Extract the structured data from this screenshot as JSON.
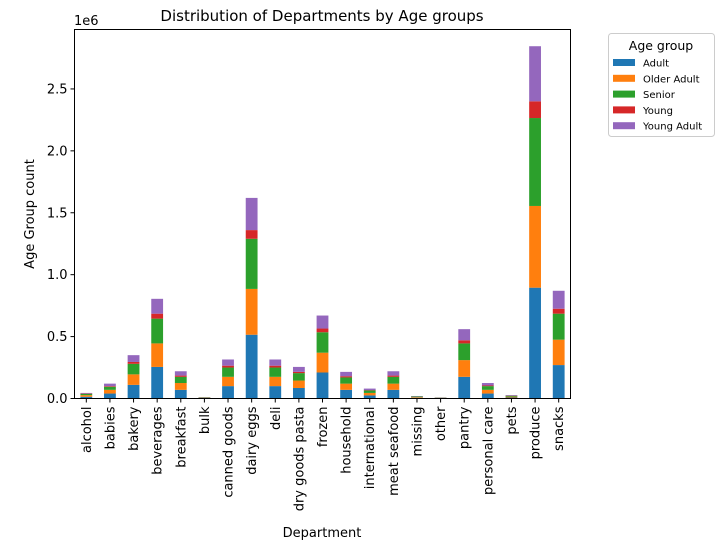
{
  "chart_data": {
    "type": "bar",
    "stacked": true,
    "title": "Distribution of Departments by Age groups",
    "xlabel": "Department",
    "ylabel": "Age Group count",
    "y_offset_label": "1e6",
    "ylim": [
      0,
      2.98
    ],
    "yticks": [
      "0.0",
      "0.5",
      "1.0",
      "1.5",
      "2.0",
      "2.5"
    ],
    "grid": false,
    "legend_title": "Age group",
    "legend_placement": "outside-top-right",
    "categories": [
      "alcohol",
      "babies",
      "bakery",
      "beverages",
      "breakfast",
      "bulk",
      "canned goods",
      "dairy eggs",
      "deli",
      "dry goods pasta",
      "frozen",
      "household",
      "international",
      "meat seafood",
      "missing",
      "other",
      "pantry",
      "personal care",
      "pets",
      "produce",
      "snacks"
    ],
    "series": [
      {
        "name": "Adult",
        "color": "#1f77b4",
        "values": [
          0.014,
          0.04,
          0.11,
          0.255,
          0.07,
          0.003,
          0.1,
          0.515,
          0.1,
          0.085,
          0.21,
          0.07,
          0.025,
          0.07,
          0.006,
          0.003,
          0.175,
          0.04,
          0.008,
          0.895,
          0.27
        ]
      },
      {
        "name": "Older Adult",
        "color": "#ff7f0e",
        "values": [
          0.013,
          0.03,
          0.085,
          0.19,
          0.055,
          0.003,
          0.075,
          0.37,
          0.075,
          0.06,
          0.16,
          0.05,
          0.02,
          0.05,
          0.005,
          0.002,
          0.135,
          0.03,
          0.007,
          0.66,
          0.205
        ]
      },
      {
        "name": "Senior",
        "color": "#2ca02c",
        "values": [
          0.011,
          0.025,
          0.085,
          0.2,
          0.05,
          0.003,
          0.075,
          0.405,
          0.075,
          0.06,
          0.165,
          0.05,
          0.02,
          0.055,
          0.005,
          0.002,
          0.135,
          0.03,
          0.007,
          0.71,
          0.21
        ]
      },
      {
        "name": "Young",
        "color": "#d62728",
        "values": [
          0.002,
          0.005,
          0.015,
          0.04,
          0.01,
          0.001,
          0.015,
          0.07,
          0.015,
          0.01,
          0.03,
          0.01,
          0.003,
          0.01,
          0.001,
          0.0005,
          0.025,
          0.005,
          0.001,
          0.135,
          0.04
        ]
      },
      {
        "name": "Young Adult",
        "color": "#9467bd",
        "values": [
          0.005,
          0.02,
          0.055,
          0.12,
          0.035,
          0.002,
          0.05,
          0.26,
          0.05,
          0.04,
          0.105,
          0.035,
          0.012,
          0.035,
          0.003,
          0.0015,
          0.09,
          0.02,
          0.005,
          0.445,
          0.145
        ]
      }
    ]
  }
}
